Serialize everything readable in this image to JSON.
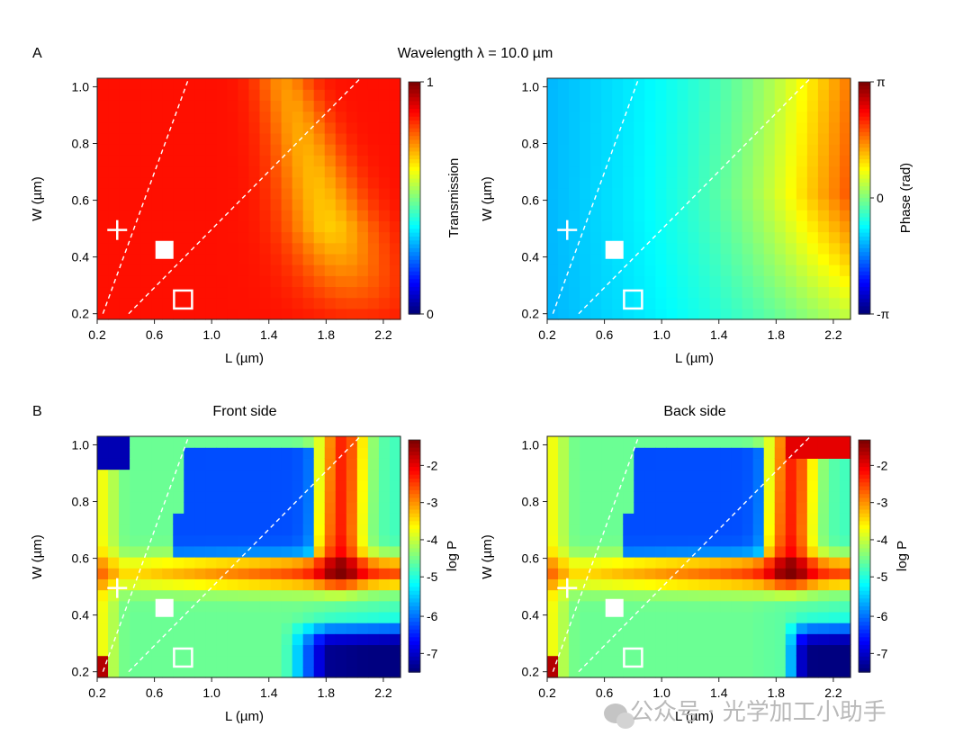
{
  "panels": {
    "A_label": "A",
    "B_label": "B",
    "top_title": "Wavelength λ = 10.0 µm"
  },
  "axes": {
    "xlabel": "L (µm)",
    "ylabel": "W (µm)",
    "x_ticks": [
      "0.2",
      "0.6",
      "1.0",
      "1.4",
      "1.8",
      "2.2"
    ],
    "y_ticks": [
      "0.2",
      "0.4",
      "0.6",
      "0.8",
      "1.0"
    ]
  },
  "colorbars": {
    "transmission": {
      "label": "Transmission",
      "ticks": [
        "1",
        "0"
      ]
    },
    "phase": {
      "label": "Phase (rad)",
      "ticks": [
        "π",
        "0",
        "-π"
      ]
    },
    "logp_front": {
      "label": "log P",
      "ticks": [
        "-2",
        "-3",
        "-4",
        "-5",
        "-6",
        "-7"
      ]
    },
    "logp_back": {
      "label": "log P",
      "ticks": [
        "-2",
        "-3",
        "-4",
        "-5",
        "-6",
        "-7"
      ]
    }
  },
  "chart_data": [
    {
      "type": "heatmap",
      "id": "transmission",
      "title": "",
      "xlabel": "L (µm)",
      "ylabel": "W (µm)",
      "xlim": [
        0.2,
        2.32
      ],
      "ylim": [
        0.18,
        1.03
      ],
      "colorbar": {
        "label": "Transmission",
        "range": [
          0,
          1
        ]
      },
      "description_values": {
        "background_transmission": 0.88,
        "resonance_minimum_transmission": 0.58
      }
    },
    {
      "type": "heatmap",
      "id": "phase",
      "title": "",
      "xlabel": "L (µm)",
      "ylabel": "W (µm)",
      "xlim": [
        0.2,
        2.32
      ],
      "ylim": [
        0.18,
        1.03
      ],
      "colorbar": {
        "label": "Phase (rad)",
        "range": [
          -3.1416,
          3.1416
        ]
      }
    },
    {
      "type": "heatmap",
      "id": "front_side",
      "title": "Front side",
      "xlabel": "L (µm)",
      "ylabel": "W (µm)",
      "xlim": [
        0.2,
        2.32
      ],
      "ylim": [
        0.18,
        1.03
      ],
      "colorbar": {
        "label": "log P",
        "range": [
          -7.5,
          -1.3
        ]
      }
    },
    {
      "type": "heatmap",
      "id": "back_side",
      "title": "Back side",
      "xlabel": "L (µm)",
      "ylabel": "W (µm)",
      "xlim": [
        0.2,
        2.32
      ],
      "ylim": [
        0.18,
        1.03
      ],
      "colorbar": {
        "label": "log P",
        "range": [
          -7.5,
          -1.3
        ]
      }
    }
  ],
  "markers": [
    {
      "type": "plus",
      "L": 0.34,
      "W": 0.495
    },
    {
      "type": "filled-square",
      "L": 0.67,
      "W": 0.425
    },
    {
      "type": "open-square",
      "L": 0.8,
      "W": 0.25
    }
  ],
  "dashed_lines": [
    {
      "from": [
        0.24,
        0.2
      ],
      "to": [
        0.84,
        1.03
      ]
    },
    {
      "from": [
        0.42,
        0.2
      ],
      "to": [
        2.04,
        1.03
      ]
    }
  ],
  "watermark": "公众号 · 光学加工小助手",
  "colors": {
    "background": "#ffffff",
    "marker": "#ffffff"
  }
}
